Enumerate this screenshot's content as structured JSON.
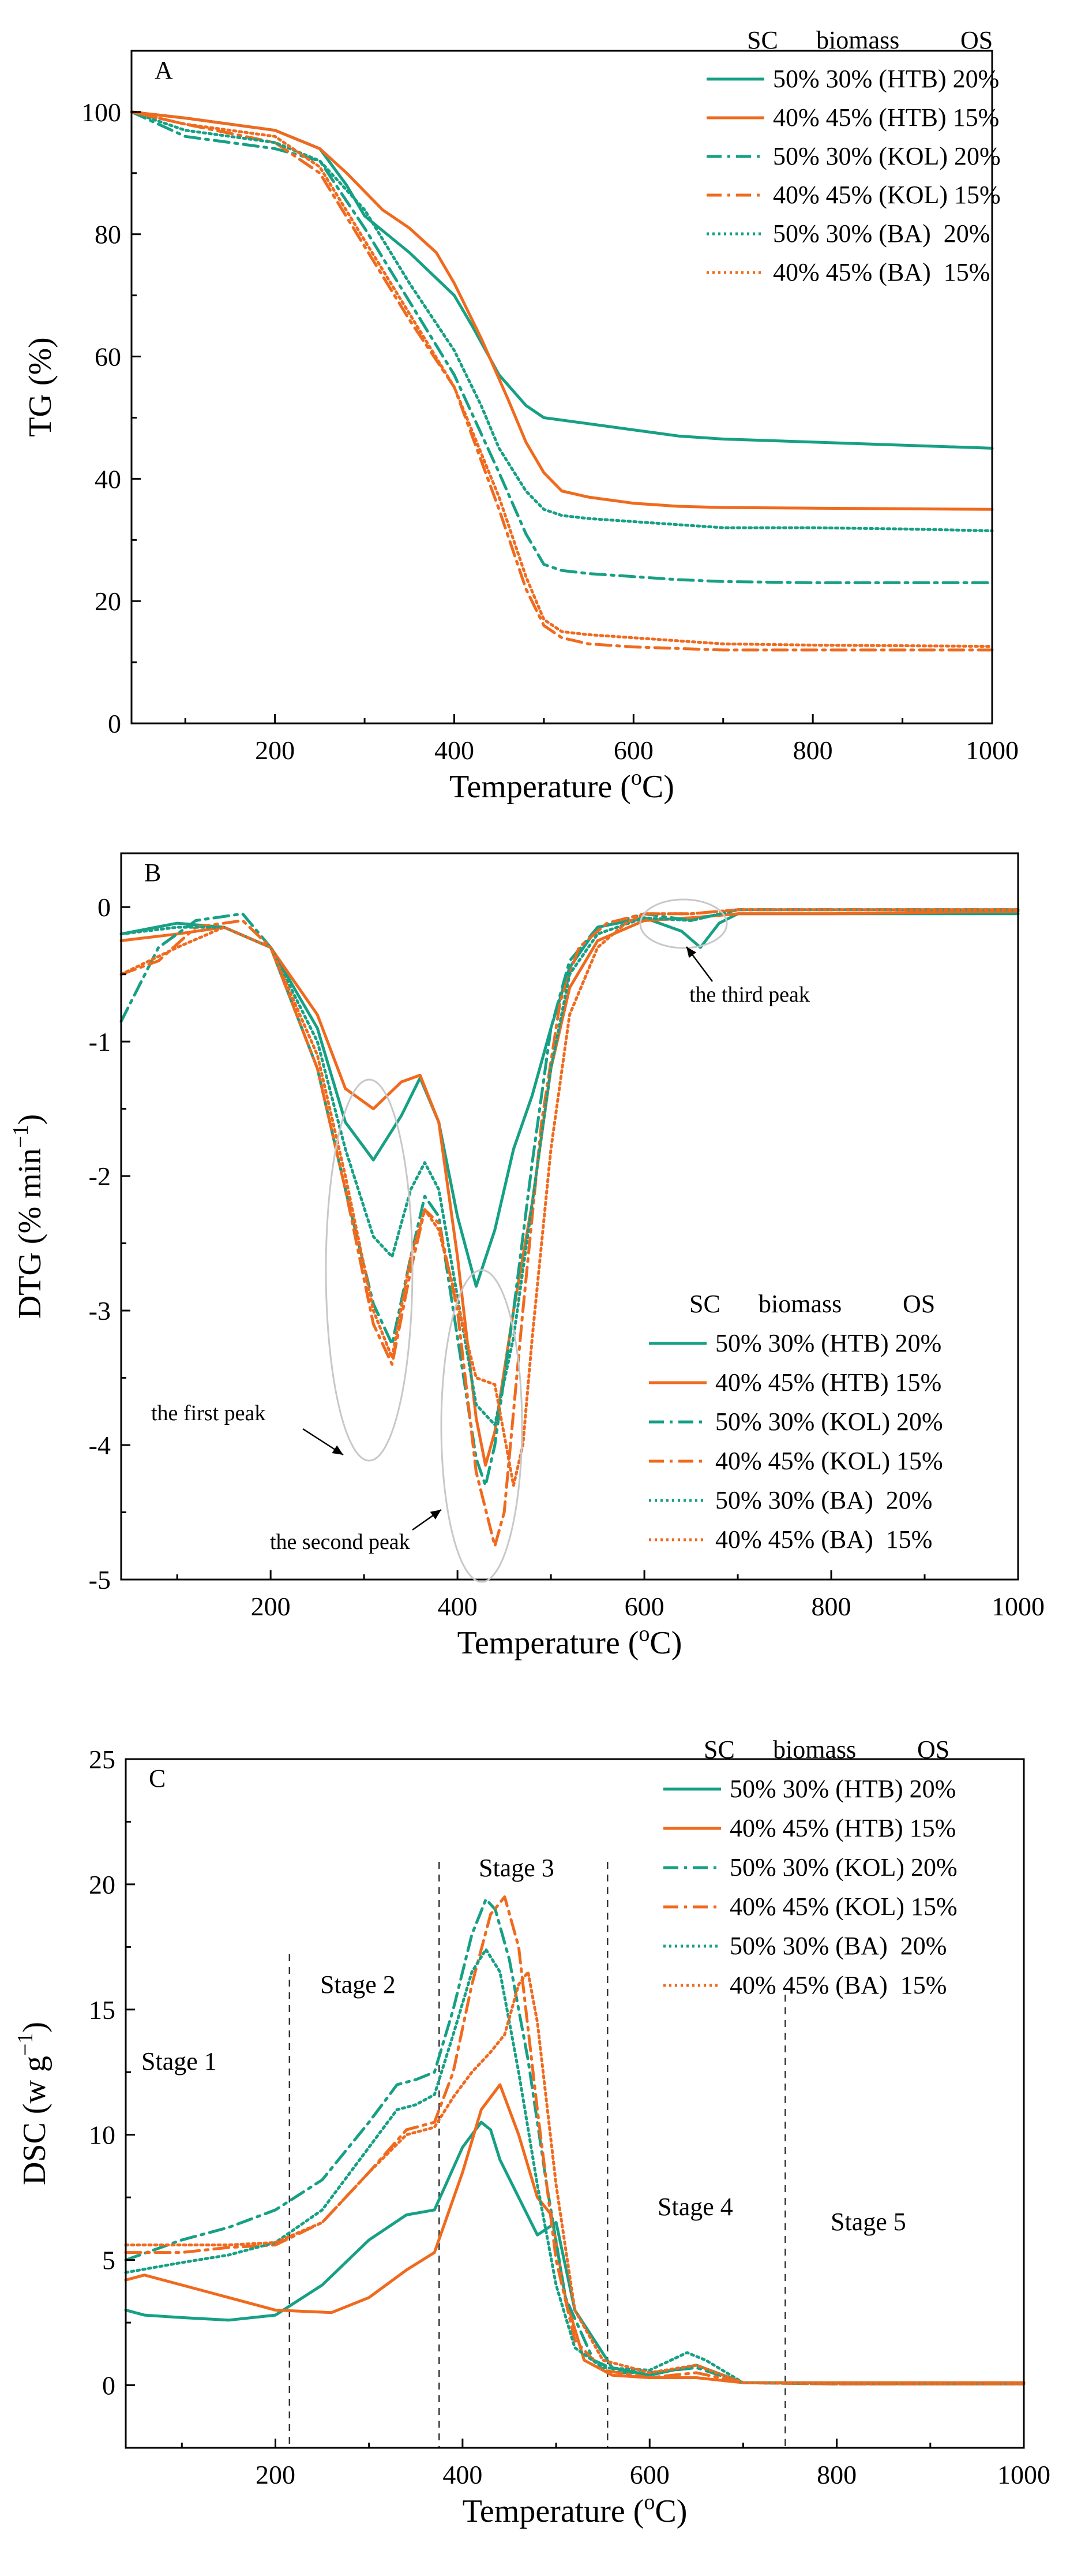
{
  "chart_data": [
    {
      "type": "line",
      "panel_label": "A",
      "xlabel": "Temperature (°C)",
      "xlabel_main": "Temperature (",
      "xlabel_sup": "o",
      "xlabel_end": "C)",
      "ylabel": "TG (%)",
      "xlim": [
        40,
        1000
      ],
      "ylim": [
        0,
        110
      ],
      "xticks": [
        200,
        400,
        600,
        800,
        1000
      ],
      "yticks": [
        0,
        20,
        40,
        60,
        80,
        100
      ],
      "legend_header": [
        "SC",
        "biomass",
        "OS"
      ],
      "legend_position": "top-right",
      "series": [
        {
          "name": "50% 30% (HTB) 20%",
          "color": "#16a085",
          "dash": "solid",
          "x": [
            40,
            100,
            200,
            250,
            280,
            300,
            350,
            400,
            420,
            450,
            480,
            500,
            550,
            600,
            650,
            700,
            800,
            900,
            1000
          ],
          "y": [
            100,
            99,
            97,
            94,
            88,
            83,
            77,
            70,
            65,
            57,
            52,
            50,
            49,
            48,
            47,
            46.5,
            46,
            45.5,
            45
          ]
        },
        {
          "name": "40% 45% (HTB) 15%",
          "color": "#f06a1e",
          "dash": "solid",
          "x": [
            40,
            100,
            200,
            250,
            280,
            300,
            320,
            350,
            380,
            400,
            430,
            460,
            480,
            500,
            520,
            550,
            600,
            650,
            700,
            800,
            900,
            1000
          ],
          "y": [
            100,
            99,
            97,
            94,
            90,
            87,
            84,
            81,
            77,
            72,
            63,
            53,
            46,
            41,
            38,
            37,
            36,
            35.5,
            35.3,
            35.2,
            35.1,
            35
          ]
        },
        {
          "name": "50% 30% (KOL) 20%",
          "color": "#16a085",
          "dash": "dashdot",
          "x": [
            40,
            100,
            200,
            250,
            300,
            350,
            400,
            450,
            480,
            500,
            520,
            550,
            600,
            650,
            700,
            800,
            900,
            1000
          ],
          "y": [
            100,
            96,
            94,
            92,
            81,
            69,
            57,
            41,
            31,
            26,
            25,
            24.5,
            24,
            23.5,
            23.2,
            23,
            23,
            23
          ]
        },
        {
          "name": "40% 45% (KOL) 15%",
          "color": "#f06a1e",
          "dash": "dashdot",
          "x": [
            40,
            100,
            200,
            250,
            300,
            350,
            400,
            450,
            480,
            500,
            520,
            550,
            600,
            700,
            800,
            900,
            1000
          ],
          "y": [
            100,
            98,
            95,
            90,
            78,
            66,
            55,
            35,
            22,
            16,
            14,
            13,
            12.5,
            12,
            12,
            12,
            12
          ]
        },
        {
          "name": "50% 30% (BA)  20%",
          "color": "#16a085",
          "dash": "dotted",
          "x": [
            40,
            100,
            200,
            250,
            300,
            350,
            400,
            430,
            450,
            480,
            500,
            520,
            550,
            600,
            650,
            700,
            800,
            900,
            1000
          ],
          "y": [
            100,
            97,
            95,
            92,
            84,
            72,
            61,
            52,
            45,
            38,
            35,
            34,
            33.5,
            33,
            32.5,
            32,
            32,
            31.8,
            31.5
          ]
        },
        {
          "name": "40% 45% (BA)  15%",
          "color": "#f06a1e",
          "dash": "dotted",
          "x": [
            40,
            100,
            200,
            250,
            300,
            350,
            400,
            450,
            480,
            500,
            520,
            550,
            600,
            650,
            700,
            800,
            900,
            1000
          ],
          "y": [
            100,
            98,
            96,
            91,
            79,
            67,
            55,
            37,
            24,
            17,
            15,
            14.5,
            14,
            13.5,
            13,
            12.8,
            12.7,
            12.6
          ]
        }
      ]
    },
    {
      "type": "line",
      "panel_label": "B",
      "xlabel": "Temperature (°C)",
      "xlabel_main": "Temperature (",
      "xlabel_sup": "o",
      "xlabel_end": "C)",
      "ylabel": "DTG (% min⁻¹)",
      "ylabel_main": "DTG (% min",
      "ylabel_sup": "−1",
      "ylabel_end": ")",
      "xlim": [
        40,
        1000
      ],
      "ylim": [
        -5,
        0.4
      ],
      "xticks": [
        200,
        400,
        600,
        800,
        1000
      ],
      "yticks": [
        -5,
        -4,
        -3,
        -2,
        -1,
        0
      ],
      "legend_header": [
        "SC",
        "biomass",
        "OS"
      ],
      "legend_position": "bottom-right",
      "annotations": [
        "the first peak",
        "the second peak",
        "the third peak"
      ],
      "series": [
        {
          "name": "50% 30% (HTB) 20%",
          "color": "#16a085",
          "dash": "solid",
          "x": [
            40,
            100,
            150,
            200,
            250,
            280,
            310,
            340,
            360,
            380,
            400,
            420,
            440,
            460,
            480,
            500,
            520,
            550,
            600,
            640,
            660,
            680,
            700,
            800,
            1000
          ],
          "y": [
            -0.2,
            -0.12,
            -0.15,
            -0.3,
            -0.9,
            -1.6,
            -1.88,
            -1.55,
            -1.27,
            -1.6,
            -2.3,
            -2.82,
            -2.4,
            -1.8,
            -1.4,
            -0.9,
            -0.45,
            -0.15,
            -0.08,
            -0.18,
            -0.3,
            -0.12,
            -0.05,
            -0.05,
            -0.05
          ]
        },
        {
          "name": "40% 45% (HTB) 15%",
          "color": "#f06a1e",
          "dash": "solid",
          "x": [
            40,
            100,
            150,
            200,
            250,
            280,
            310,
            340,
            360,
            380,
            400,
            420,
            430,
            440,
            460,
            480,
            500,
            520,
            550,
            600,
            650,
            700,
            800,
            1000
          ],
          "y": [
            -0.25,
            -0.2,
            -0.15,
            -0.3,
            -0.8,
            -1.35,
            -1.5,
            -1.3,
            -1.25,
            -1.6,
            -2.6,
            -3.8,
            -4.15,
            -3.9,
            -3.0,
            -2.2,
            -1.2,
            -0.6,
            -0.25,
            -0.1,
            -0.08,
            -0.05,
            -0.05,
            -0.03
          ]
        },
        {
          "name": "50% 30% (KOL) 20%",
          "color": "#16a085",
          "dash": "dashdot",
          "x": [
            40,
            80,
            120,
            170,
            200,
            250,
            280,
            310,
            330,
            350,
            365,
            380,
            400,
            420,
            430,
            440,
            460,
            480,
            500,
            520,
            550,
            600,
            650,
            700,
            800,
            1000
          ],
          "y": [
            -0.85,
            -0.3,
            -0.1,
            -0.05,
            -0.3,
            -1.2,
            -2.1,
            -2.95,
            -3.25,
            -2.6,
            -2.15,
            -2.3,
            -3.2,
            -4.1,
            -4.3,
            -4.0,
            -3.0,
            -1.9,
            -0.9,
            -0.4,
            -0.15,
            -0.05,
            -0.1,
            -0.02,
            -0.02,
            -0.02
          ]
        },
        {
          "name": "40% 45% (KOL) 15%",
          "color": "#f06a1e",
          "dash": "dashdot",
          "x": [
            40,
            80,
            120,
            170,
            200,
            250,
            280,
            310,
            330,
            350,
            365,
            380,
            400,
            420,
            440,
            450,
            470,
            490,
            510,
            530,
            560,
            600,
            650,
            700,
            800,
            1000
          ],
          "y": [
            -0.5,
            -0.4,
            -0.15,
            -0.1,
            -0.3,
            -1.2,
            -2.1,
            -3.1,
            -3.4,
            -2.7,
            -2.25,
            -2.35,
            -3.0,
            -4.2,
            -4.75,
            -4.5,
            -3.0,
            -1.6,
            -0.7,
            -0.3,
            -0.12,
            -0.05,
            -0.05,
            -0.02,
            -0.02,
            -0.02
          ]
        },
        {
          "name": "50% 30% (BA)  20%",
          "color": "#16a085",
          "dash": "dotted",
          "x": [
            40,
            100,
            150,
            200,
            250,
            280,
            310,
            330,
            350,
            365,
            380,
            400,
            420,
            440,
            460,
            480,
            500,
            520,
            550,
            600,
            650,
            700,
            800,
            1000
          ],
          "y": [
            -0.2,
            -0.15,
            -0.15,
            -0.3,
            -1.0,
            -1.8,
            -2.45,
            -2.6,
            -2.1,
            -1.9,
            -2.1,
            -2.9,
            -3.7,
            -3.85,
            -3.2,
            -2.2,
            -1.2,
            -0.5,
            -0.2,
            -0.08,
            -0.1,
            -0.02,
            -0.02,
            -0.02
          ]
        },
        {
          "name": "40% 45% (BA)  15%",
          "color": "#f06a1e",
          "dash": "dotted",
          "x": [
            40,
            100,
            150,
            200,
            250,
            280,
            310,
            330,
            350,
            365,
            380,
            400,
            420,
            440,
            460,
            470,
            480,
            500,
            520,
            550,
            580,
            600,
            650,
            700,
            800,
            1000
          ],
          "y": [
            -0.5,
            -0.3,
            -0.15,
            -0.3,
            -1.1,
            -2.0,
            -3.0,
            -3.35,
            -2.6,
            -2.25,
            -2.4,
            -2.95,
            -3.5,
            -3.55,
            -4.3,
            -4.0,
            -3.2,
            -1.8,
            -0.8,
            -0.3,
            -0.12,
            -0.05,
            -0.05,
            -0.02,
            -0.02,
            -0.02
          ]
        }
      ]
    },
    {
      "type": "line",
      "panel_label": "C",
      "xlabel": "Temperature (°C)",
      "xlabel_main": "Temperature (",
      "xlabel_sup": "o",
      "xlabel_end": "C)",
      "ylabel": "DSC (w g⁻¹)",
      "ylabel_main": "DSC (w g",
      "ylabel_sup": "−1",
      "ylabel_end": ")",
      "xlim": [
        40,
        1000
      ],
      "ylim": [
        -2.5,
        25
      ],
      "xticks": [
        200,
        400,
        600,
        800,
        1000
      ],
      "yticks": [
        0,
        5,
        10,
        15,
        20,
        25
      ],
      "legend_header": [
        "SC",
        "biomass",
        "OS"
      ],
      "legend_position": "top-right",
      "stage_boundaries": [
        215,
        375,
        555,
        745
      ],
      "stage_labels": [
        "Stage 1",
        "Stage 2",
        "Stage 3",
        "Stage 4",
        "Stage 5"
      ],
      "series": [
        {
          "name": "50% 30% (HTB) 20%",
          "color": "#16a085",
          "dash": "solid",
          "x": [
            40,
            60,
            100,
            150,
            200,
            250,
            300,
            340,
            370,
            400,
            420,
            430,
            440,
            460,
            480,
            500,
            520,
            560,
            600,
            650,
            700,
            800,
            1000
          ],
          "y": [
            3.0,
            2.8,
            2.7,
            2.6,
            2.8,
            4.0,
            5.8,
            6.8,
            7.0,
            9.5,
            10.5,
            10.2,
            9.0,
            7.5,
            6.0,
            6.5,
            3.0,
            0.7,
            0.4,
            0.8,
            0.1,
            0.1,
            0.1
          ]
        },
        {
          "name": "40% 45% (HTB) 15%",
          "color": "#f06a1e",
          "dash": "solid",
          "x": [
            40,
            60,
            100,
            150,
            200,
            260,
            300,
            340,
            370,
            400,
            420,
            440,
            460,
            480,
            495,
            510,
            530,
            560,
            600,
            650,
            700,
            800,
            1000
          ],
          "y": [
            4.2,
            4.4,
            4.0,
            3.5,
            3.0,
            2.9,
            3.5,
            4.6,
            5.3,
            8.5,
            11.0,
            12.0,
            10.0,
            7.5,
            6.8,
            3.5,
            1.0,
            0.4,
            0.3,
            0.3,
            0.1,
            0.1,
            0.1
          ]
        },
        {
          "name": "50% 30% (KOL) 20%",
          "color": "#16a085",
          "dash": "dashdot",
          "x": [
            40,
            100,
            150,
            200,
            250,
            300,
            330,
            350,
            370,
            390,
            410,
            425,
            435,
            450,
            470,
            490,
            510,
            540,
            570,
            600,
            650,
            700,
            800,
            1000
          ],
          "y": [
            5.0,
            5.8,
            6.3,
            7.0,
            8.2,
            10.5,
            12.0,
            12.2,
            12.5,
            15.0,
            18.0,
            19.4,
            19.0,
            17.0,
            13.0,
            8.0,
            3.5,
            1.0,
            0.5,
            0.5,
            0.7,
            0.1,
            0.05,
            0.05
          ]
        },
        {
          "name": "40% 45% (KOL) 15%",
          "color": "#f06a1e",
          "dash": "dashdot",
          "x": [
            40,
            100,
            150,
            200,
            250,
            300,
            340,
            370,
            390,
            410,
            430,
            445,
            460,
            480,
            500,
            520,
            550,
            600,
            650,
            700,
            800,
            1000
          ],
          "y": [
            5.3,
            5.3,
            5.5,
            5.6,
            6.5,
            8.5,
            10.2,
            10.5,
            12.5,
            16.0,
            18.8,
            19.5,
            17.5,
            11.0,
            5.0,
            1.8,
            0.6,
            0.3,
            0.5,
            0.1,
            0.05,
            0.05
          ]
        },
        {
          "name": "50% 30% (BA)  20%",
          "color": "#16a085",
          "dash": "dotted",
          "x": [
            40,
            100,
            150,
            200,
            250,
            300,
            330,
            350,
            370,
            390,
            410,
            425,
            440,
            460,
            480,
            500,
            520,
            550,
            600,
            640,
            660,
            700,
            800,
            1000
          ],
          "y": [
            4.5,
            4.9,
            5.2,
            5.7,
            7.0,
            9.5,
            11.0,
            11.2,
            11.6,
            14.0,
            16.5,
            17.4,
            16.5,
            12.5,
            8.0,
            4.0,
            1.5,
            0.7,
            0.6,
            1.3,
            1.0,
            0.1,
            0.05,
            0.05
          ]
        },
        {
          "name": "40% 45% (BA)  15%",
          "color": "#f06a1e",
          "dash": "dotted",
          "x": [
            40,
            100,
            150,
            200,
            250,
            300,
            340,
            370,
            390,
            410,
            430,
            445,
            460,
            470,
            480,
            500,
            520,
            550,
            600,
            650,
            700,
            800,
            1000
          ],
          "y": [
            5.6,
            5.6,
            5.6,
            5.7,
            6.5,
            8.5,
            10.0,
            10.3,
            11.5,
            12.5,
            13.3,
            14.0,
            16.0,
            16.5,
            14.5,
            8.0,
            3.0,
            1.0,
            0.5,
            0.8,
            0.1,
            0.05,
            0.05
          ]
        }
      ]
    }
  ]
}
